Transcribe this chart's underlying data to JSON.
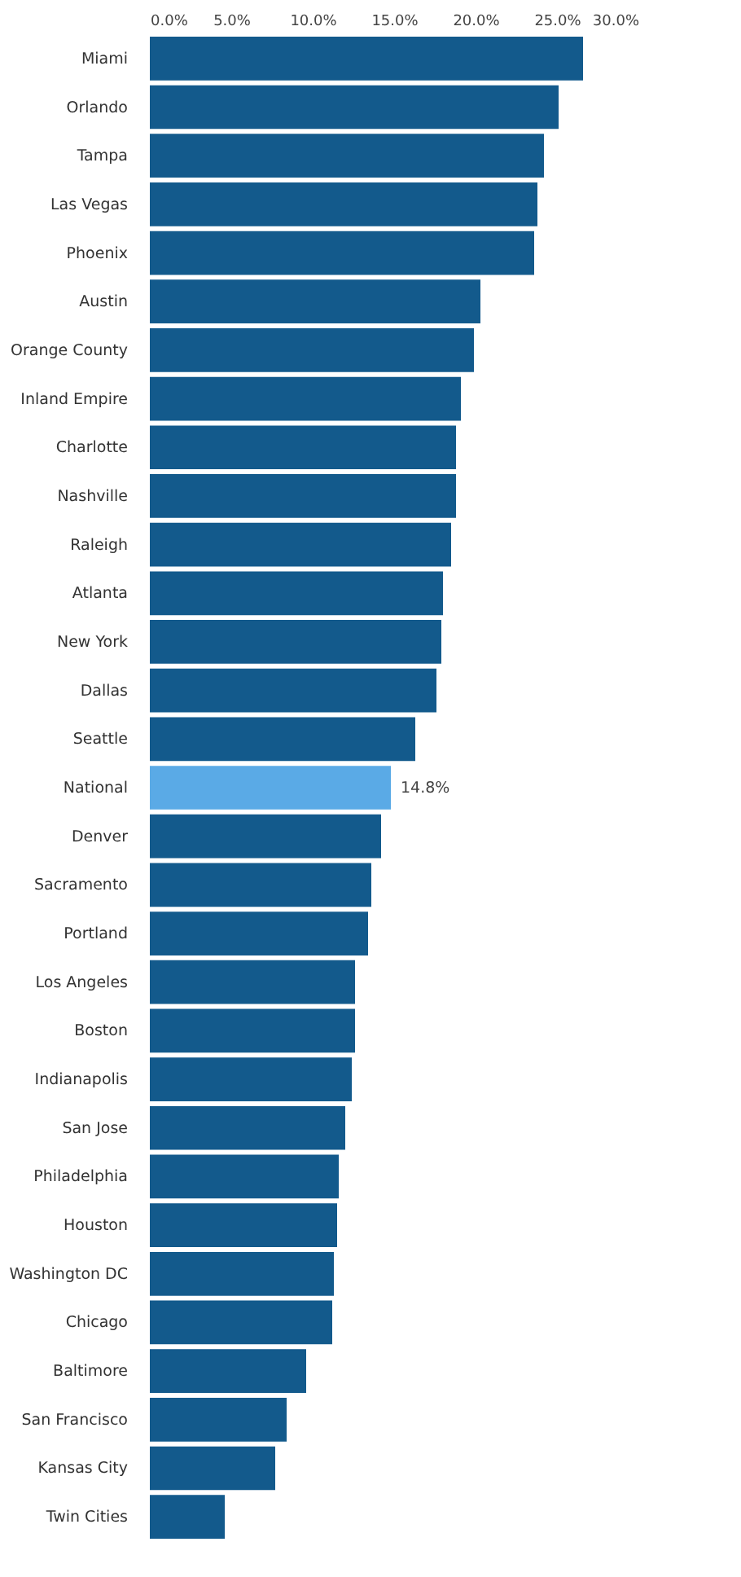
{
  "chart_data": {
    "type": "bar",
    "orientation": "horizontal",
    "categories": [
      "Miami",
      "Orlando",
      "Tampa",
      "Las Vegas",
      "Phoenix",
      "Austin",
      "Orange County",
      "Inland Empire",
      "Charlotte",
      "Nashville",
      "Raleigh",
      "Atlanta",
      "New York",
      "Dallas",
      "Seattle",
      "National",
      "Denver",
      "Sacramento",
      "Portland",
      "Los Angeles",
      "Boston",
      "Indianapolis",
      "San Jose",
      "Philadelphia",
      "Houston",
      "Washington DC",
      "Chicago",
      "Baltimore",
      "San Francisco",
      "Kansas City",
      "Twin Cities"
    ],
    "values": [
      26.6,
      25.1,
      24.2,
      23.8,
      23.6,
      20.3,
      19.9,
      19.1,
      18.8,
      18.8,
      18.5,
      18.0,
      17.9,
      17.6,
      16.3,
      14.8,
      14.2,
      13.6,
      13.4,
      12.6,
      12.6,
      12.4,
      12.0,
      11.6,
      11.5,
      11.3,
      11.2,
      9.6,
      8.4,
      7.7,
      4.6
    ],
    "colors": [
      "#135a8c",
      "#135a8c",
      "#135a8c",
      "#135a8c",
      "#135a8c",
      "#135a8c",
      "#135a8c",
      "#135a8c",
      "#135a8c",
      "#135a8c",
      "#135a8c",
      "#135a8c",
      "#135a8c",
      "#135a8c",
      "#135a8c",
      "#5aaae6",
      "#135a8c",
      "#135a8c",
      "#135a8c",
      "#135a8c",
      "#135a8c",
      "#135a8c",
      "#135a8c",
      "#135a8c",
      "#135a8c",
      "#135a8c",
      "#135a8c",
      "#135a8c",
      "#135a8c",
      "#135a8c",
      "#135a8c"
    ],
    "value_labels": [
      null,
      null,
      null,
      null,
      null,
      null,
      null,
      null,
      null,
      null,
      null,
      null,
      null,
      null,
      null,
      "14.8%",
      null,
      null,
      null,
      null,
      null,
      null,
      null,
      null,
      null,
      null,
      null,
      null,
      null,
      null,
      null
    ],
    "xlim": [
      0,
      30
    ],
    "xticks": [
      {
        "value": 0,
        "label": "0.0%"
      },
      {
        "value": 5,
        "label": "5.0%"
      },
      {
        "value": 10,
        "label": "10.0%"
      },
      {
        "value": 15,
        "label": "15.0%"
      },
      {
        "value": 20,
        "label": "20.0%"
      },
      {
        "value": 25,
        "label": "25.0%"
      },
      {
        "value": 30,
        "label": "30.0%"
      }
    ],
    "grid": false
  }
}
